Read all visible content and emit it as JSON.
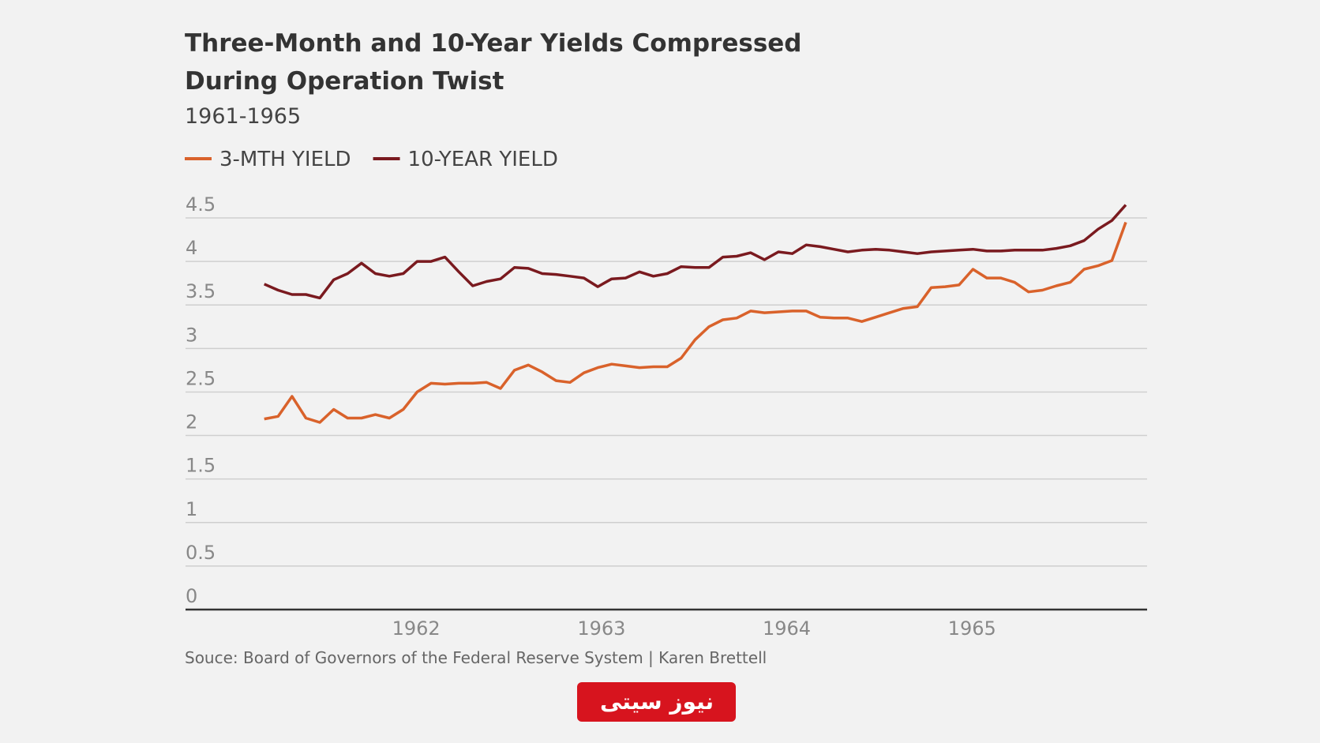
{
  "chart_data": {
    "type": "line",
    "title": [
      "Three-Month and 10-Year Yields Compressed",
      "During Operation Twist"
    ],
    "subtitle": "1961-1965",
    "source": "Souce: Board of Governors of the Federal Reserve System | Karen Brettell",
    "x": [
      1961.18,
      1961.255,
      1961.33,
      1961.405,
      1961.48,
      1961.555,
      1961.63,
      1961.705,
      1961.78,
      1961.855,
      1961.93,
      1962.005,
      1962.08,
      1962.155,
      1962.23,
      1962.305,
      1962.38,
      1962.455,
      1962.53,
      1962.605,
      1962.68,
      1962.755,
      1962.83,
      1962.905,
      1962.98,
      1963.055,
      1963.13,
      1963.205,
      1963.28,
      1963.355,
      1963.43,
      1963.505,
      1963.58,
      1963.655,
      1963.73,
      1963.805,
      1963.88,
      1963.955,
      1964.03,
      1964.105,
      1964.18,
      1964.255,
      1964.33,
      1964.405,
      1964.48,
      1964.555,
      1964.63,
      1964.705,
      1964.78,
      1964.855,
      1964.93,
      1965.005,
      1965.08,
      1965.155,
      1965.23,
      1965.305,
      1965.38,
      1965.455,
      1965.53,
      1965.605,
      1965.68,
      1965.755,
      1965.83
    ],
    "series": [
      {
        "name": "3-MTH YIELD",
        "color": "#d9622b",
        "values": [
          2.19,
          2.22,
          2.45,
          2.2,
          2.15,
          2.3,
          2.2,
          2.2,
          2.24,
          2.2,
          2.3,
          2.5,
          2.6,
          2.59,
          2.6,
          2.6,
          2.61,
          2.54,
          2.75,
          2.81,
          2.73,
          2.63,
          2.61,
          2.72,
          2.78,
          2.82,
          2.8,
          2.78,
          2.79,
          2.79,
          2.89,
          3.1,
          3.25,
          3.33,
          3.35,
          3.43,
          3.41,
          3.42,
          3.43,
          3.43,
          3.36,
          3.35,
          3.35,
          3.31,
          3.36,
          3.41,
          3.46,
          3.48,
          3.7,
          3.71,
          3.73,
          3.91,
          3.81,
          3.81,
          3.76,
          3.65,
          3.67,
          3.72,
          3.76,
          3.91,
          3.95,
          4.01,
          4.45
        ]
      },
      {
        "name": "10-YEAR YIELD",
        "color": "#7a1a1f",
        "values": [
          3.74,
          3.67,
          3.62,
          3.62,
          3.58,
          3.79,
          3.86,
          3.98,
          3.86,
          3.83,
          3.86,
          4.0,
          4.0,
          4.05,
          3.88,
          3.72,
          3.77,
          3.8,
          3.93,
          3.92,
          3.86,
          3.85,
          3.83,
          3.81,
          3.71,
          3.8,
          3.81,
          3.88,
          3.83,
          3.86,
          3.94,
          3.93,
          3.93,
          4.05,
          4.06,
          4.1,
          4.02,
          4.11,
          4.09,
          4.19,
          4.17,
          4.14,
          4.11,
          4.13,
          4.14,
          4.13,
          4.11,
          4.09,
          4.11,
          4.12,
          4.13,
          4.14,
          4.12,
          4.12,
          4.13,
          4.13,
          4.13,
          4.15,
          4.18,
          4.24,
          4.37,
          4.47,
          4.65
        ]
      }
    ],
    "xlim": [
      1960.755,
      1965.945
    ],
    "xticks": [
      1962,
      1963,
      1964,
      1965
    ],
    "ylim": [
      0,
      4.5
    ],
    "yticks": [
      0,
      0.5,
      1,
      1.5,
      2,
      2.5,
      3,
      3.5,
      4,
      4.5
    ],
    "grid": true
  },
  "logo": "نیوز سیتی"
}
